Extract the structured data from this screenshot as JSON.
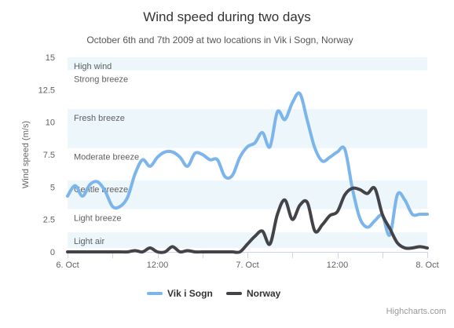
{
  "chart_data": {
    "type": "line",
    "title": "Wind speed during two days",
    "subtitle": "October 6th and 7th 2009 at two locations in Vik i Sogn, Norway",
    "ylabel": "Wind speed (m/s)",
    "xlabel": "",
    "x_unit": "hours since 6. Oct 00:00",
    "xlim": [
      0,
      48
    ],
    "ylim": [
      0,
      15
    ],
    "y_ticks": [
      "0",
      "2.5",
      "5",
      "7.5",
      "10",
      "12.5",
      "15"
    ],
    "x_ticks": [
      {
        "x": 0,
        "label": "6. Oct"
      },
      {
        "x": 12,
        "label": "12:00"
      },
      {
        "x": 24,
        "label": "7. Oct"
      },
      {
        "x": 36,
        "label": "12:00"
      },
      {
        "x": 48,
        "label": "8. Oct"
      }
    ],
    "bands": [
      {
        "from": 0.3,
        "to": 1.5,
        "label": "Light air",
        "shaded": true
      },
      {
        "from": 1.5,
        "to": 3.3,
        "label": "Light breeze",
        "shaded": false
      },
      {
        "from": 3.3,
        "to": 5.5,
        "label": "Gentle breeze",
        "shaded": true
      },
      {
        "from": 5.5,
        "to": 8.0,
        "label": "Moderate breeze",
        "shaded": false
      },
      {
        "from": 8.0,
        "to": 11.0,
        "label": "Fresh breeze",
        "shaded": true
      },
      {
        "from": 11.0,
        "to": 14.0,
        "label": "Strong breeze",
        "shaded": false
      },
      {
        "from": 14.0,
        "to": 15.0,
        "label": "High wind",
        "shaded": true
      }
    ],
    "grid": false,
    "legend_position": "bottom",
    "series": [
      {
        "name": "Vik i Sogn",
        "color": "#7cb5ec",
        "values": [
          4.3,
          5.1,
          4.3,
          5.2,
          5.4,
          4.7,
          3.5,
          3.5,
          4.2,
          6.0,
          7.1,
          6.6,
          7.3,
          7.7,
          7.7,
          7.3,
          6.6,
          7.6,
          7.5,
          7.1,
          7.1,
          5.8,
          5.9,
          7.3,
          8.1,
          8.4,
          9.2,
          8.1,
          10.8,
          10.2,
          11.5,
          12.2,
          10.1,
          8.0,
          7.0,
          7.3,
          7.7,
          7.9,
          4.9,
          2.6,
          1.9,
          2.4,
          2.8,
          1.3,
          4.4,
          4.0,
          2.9,
          2.9,
          2.9
        ]
      },
      {
        "name": "Norway",
        "color": "#434348",
        "values": [
          0.0,
          0.0,
          0.0,
          0.0,
          0.0,
          0.0,
          0.0,
          0.0,
          0.0,
          0.1,
          0.0,
          0.3,
          0.0,
          0.0,
          0.4,
          0.0,
          0.1,
          0.0,
          0.0,
          0.0,
          0.0,
          0.0,
          0.0,
          0.0,
          0.6,
          1.2,
          1.6,
          0.6,
          2.9,
          4.0,
          2.5,
          3.6,
          3.8,
          1.6,
          2.1,
          2.8,
          3.1,
          4.4,
          4.9,
          4.8,
          4.5,
          4.9,
          2.9,
          1.8,
          0.7,
          0.3,
          0.3,
          0.4,
          0.3
        ]
      }
    ]
  },
  "credits": "Highcharts.com"
}
